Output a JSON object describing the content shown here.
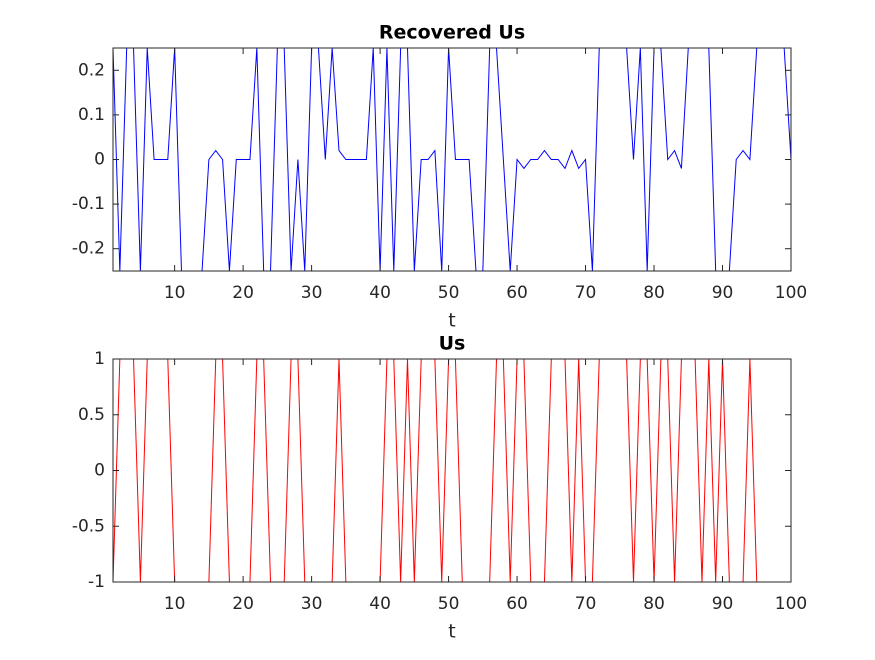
{
  "chart_data": [
    {
      "type": "line",
      "title": "Recovered Us",
      "x_label": "t",
      "x": [
        1,
        2,
        3,
        4,
        5,
        6,
        7,
        8,
        9,
        10,
        11,
        12,
        13,
        14,
        15,
        16,
        17,
        18,
        19,
        20,
        21,
        22,
        23,
        24,
        25,
        26,
        27,
        28,
        29,
        30,
        31,
        32,
        33,
        34,
        35,
        36,
        37,
        38,
        39,
        40,
        41,
        42,
        43,
        44,
        45,
        46,
        47,
        48,
        49,
        50,
        51,
        52,
        53,
        54,
        55,
        56,
        57,
        58,
        59,
        60,
        61,
        62,
        63,
        64,
        65,
        66,
        67,
        68,
        69,
        70,
        71,
        72,
        73,
        74,
        75,
        76,
        77,
        78,
        79,
        80,
        81,
        82,
        83,
        84,
        85,
        86,
        87,
        88,
        89,
        90,
        91,
        92,
        93,
        94,
        95,
        96,
        97,
        98,
        99,
        100
      ],
      "series": [
        {
          "color": "#0000ff",
          "values": [
            0.25,
            -0.25,
            0.25,
            0.25,
            -0.25,
            0.25,
            0,
            0,
            0,
            0.25,
            -0.25,
            -0.25,
            -0.25,
            -0.25,
            0,
            0.02,
            0,
            -0.25,
            0,
            0,
            0,
            0.25,
            -0.25,
            -0.25,
            0.25,
            0.25,
            -0.25,
            0,
            -0.25,
            0.25,
            0.25,
            0,
            0.25,
            0.02,
            0,
            0,
            0,
            0,
            0.25,
            -0.25,
            0.25,
            -0.25,
            0.25,
            0.25,
            -0.25,
            0,
            0,
            0.02,
            -0.25,
            0.25,
            0,
            0,
            0,
            -0.25,
            -0.25,
            0.25,
            0.25,
            0,
            -0.25,
            0,
            -0.02,
            0,
            0,
            0.02,
            0,
            0,
            -0.02,
            0.02,
            -0.02,
            0,
            -0.25,
            0.25,
            0.25,
            0.25,
            0.25,
            0.25,
            0,
            0.25,
            -0.25,
            0.25,
            0.25,
            0,
            0.02,
            -0.02,
            0.25,
            0.25,
            0.25,
            0.25,
            -0.25,
            -0.25,
            -0.25,
            0,
            0.02,
            0,
            0.25,
            0.25,
            0.25,
            0.25,
            0.25,
            0
          ]
        }
      ],
      "xlim": [
        1,
        100
      ],
      "xticks": [
        10,
        20,
        30,
        40,
        50,
        60,
        70,
        80,
        90,
        100
      ],
      "ylim": [
        -0.25,
        0.25
      ],
      "yticks": [
        -0.2,
        -0.1,
        0,
        0.1,
        0.2
      ]
    },
    {
      "type": "line",
      "title": "Us",
      "x_label": "t",
      "x": [
        1,
        2,
        3,
        4,
        5,
        6,
        7,
        8,
        9,
        10,
        11,
        12,
        13,
        14,
        15,
        16,
        17,
        18,
        19,
        20,
        21,
        22,
        23,
        24,
        25,
        26,
        27,
        28,
        29,
        30,
        31,
        32,
        33,
        34,
        35,
        36,
        37,
        38,
        39,
        40,
        41,
        42,
        43,
        44,
        45,
        46,
        47,
        48,
        49,
        50,
        51,
        52,
        53,
        54,
        55,
        56,
        57,
        58,
        59,
        60,
        61,
        62,
        63,
        64,
        65,
        66,
        67,
        68,
        69,
        70,
        71,
        72,
        73,
        74,
        75,
        76,
        77,
        78,
        79,
        80,
        81,
        82,
        83,
        84,
        85,
        86,
        87,
        88,
        89,
        90,
        91,
        92,
        93,
        94,
        95,
        96,
        97,
        98,
        99,
        100
      ],
      "series": [
        {
          "color": "#ff0000",
          "values": [
            -1,
            1,
            1,
            1,
            -1,
            1,
            1,
            1,
            1,
            -1,
            -1,
            -1,
            -1,
            -1,
            -1,
            1,
            1,
            -1,
            -1,
            -1,
            -1,
            1,
            1,
            -1,
            -1,
            -1,
            1,
            1,
            -1,
            -1,
            -1,
            -1,
            -1,
            1,
            -1,
            -1,
            -1,
            -1,
            -1,
            -1,
            1,
            1,
            -1,
            1,
            -1,
            1,
            1,
            1,
            -1,
            1,
            1,
            -1,
            -1,
            -1,
            -1,
            -1,
            1,
            1,
            -1,
            1,
            1,
            -1,
            -1,
            -1,
            1,
            1,
            1,
            -1,
            1,
            -1,
            -1,
            1,
            1,
            1,
            1,
            1,
            -1,
            1,
            1,
            -1,
            1,
            1,
            -1,
            1,
            1,
            1,
            -1,
            1,
            -1,
            1,
            -1,
            -1,
            -1,
            1,
            -1,
            -1,
            -1,
            -1,
            -1,
            -1
          ]
        }
      ],
      "xlim": [
        1,
        100
      ],
      "xticks": [
        10,
        20,
        30,
        40,
        50,
        60,
        70,
        80,
        90,
        100
      ],
      "ylim": [
        -1,
        1
      ],
      "yticks": [
        -1,
        -0.5,
        0,
        0.5,
        1
      ]
    }
  ]
}
